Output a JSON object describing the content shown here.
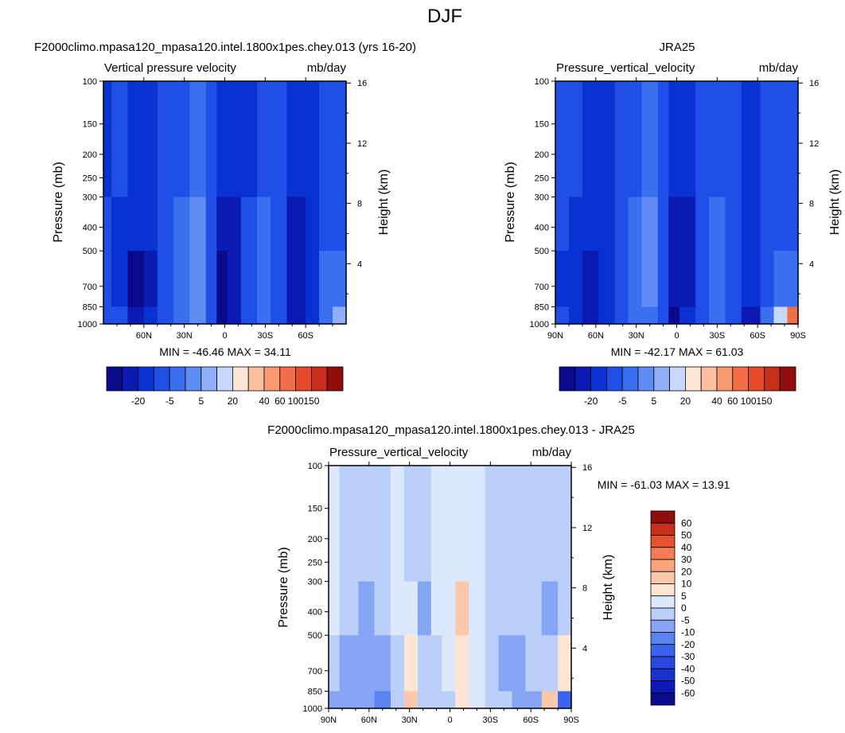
{
  "figure": {
    "title": "DJF"
  },
  "colors": {
    "abs_palette": [
      "#0a0a8c",
      "#0a1ab3",
      "#0a32d2",
      "#1f4fe6",
      "#3a6ff0",
      "#5f8cf2",
      "#8fb0f6",
      "#c6d8fb",
      "#fde5d4",
      "#fcc0a0",
      "#f99a74",
      "#f36d48",
      "#e6482a",
      "#c62d1a",
      "#8f0d0d"
    ],
    "diff_palette": [
      "#0a0a8c",
      "#0a1ab3",
      "#1a32cc",
      "#2848e0",
      "#3a64ee",
      "#5a84f0",
      "#86a6f5",
      "#bad0f9",
      "#dce9fd",
      "#fde5d4",
      "#fcc8ac",
      "#f9a67f",
      "#f37d57",
      "#e6512f",
      "#c8301b",
      "#8f0d0d"
    ]
  },
  "chart_data": [
    {
      "type": "heatmap",
      "title": "F2000climo.mpasa120_mpasa120.intel.1800x1pes.chey.013 (yrs 16-20)",
      "left_string": "Vertical pressure velocity",
      "right_string": "mb/day",
      "ylabel": "Pressure (mb)",
      "y2label": "Height (km)",
      "x_ticks": [
        "60N",
        "30N",
        "0",
        "30S",
        "60S"
      ],
      "x_range": [
        90,
        -90
      ],
      "y_ticks": [
        "100",
        "150",
        "200",
        "250",
        "300",
        "400",
        "500",
        "700",
        "850",
        "1000"
      ],
      "y_range": [
        100,
        1000
      ],
      "height_ticks": [
        "16",
        "12",
        "8",
        "4"
      ],
      "stats": "MIN = -46.46  MAX =  34.11",
      "min": -46.46,
      "max": 34.11,
      "colorbar": {
        "orientation": "horizontal",
        "labels": [
          "-20",
          "-5",
          "5",
          "20",
          "40",
          "60",
          "100",
          "150"
        ]
      },
      "bands": [
        {
          "lat": [
            90,
            84
          ],
          "levels": [
            -22,
            -20,
            -18,
            -15
          ]
        },
        {
          "lat": [
            84,
            72
          ],
          "levels": [
            -20,
            -22,
            -28,
            -15
          ]
        },
        {
          "lat": [
            72,
            60
          ],
          "levels": [
            -22,
            -30,
            -42,
            -40
          ]
        },
        {
          "lat": [
            60,
            50
          ],
          "levels": [
            -22,
            -30,
            -38,
            -30
          ]
        },
        {
          "lat": [
            50,
            38
          ],
          "levels": [
            -15,
            -18,
            -15,
            -12
          ]
        },
        {
          "lat": [
            38,
            26
          ],
          "levels": [
            -12,
            -8,
            -6,
            -8
          ]
        },
        {
          "lat": [
            26,
            14
          ],
          "levels": [
            -10,
            -5,
            -3,
            -5
          ]
        },
        {
          "lat": [
            14,
            6
          ],
          "levels": [
            -18,
            -15,
            -12,
            -14
          ]
        },
        {
          "lat": [
            6,
            -2
          ],
          "levels": [
            -28,
            -40,
            -45,
            -44
          ]
        },
        {
          "lat": [
            -2,
            -12
          ],
          "levels": [
            -28,
            -35,
            -38,
            -32
          ]
        },
        {
          "lat": [
            -12,
            -24
          ],
          "levels": [
            -22,
            -20,
            -20,
            -20
          ]
        },
        {
          "lat": [
            -24,
            -34
          ],
          "levels": [
            -15,
            -10,
            -8,
            -10
          ]
        },
        {
          "lat": [
            -34,
            -46
          ],
          "levels": [
            -16,
            -15,
            -14,
            -15
          ]
        },
        {
          "lat": [
            -46,
            -60
          ],
          "levels": [
            -25,
            -32,
            -40,
            -38
          ]
        },
        {
          "lat": [
            -60,
            -70
          ],
          "levels": [
            -22,
            -25,
            -30,
            -28
          ]
        },
        {
          "lat": [
            -70,
            -80
          ],
          "levels": [
            -18,
            -15,
            -10,
            -6
          ]
        },
        {
          "lat": [
            -80,
            -90
          ],
          "levels": [
            -15,
            -12,
            -8,
            0
          ]
        }
      ]
    },
    {
      "type": "heatmap",
      "title": "JRA25",
      "left_string": "Pressure_vertical_velocity",
      "right_string": "mb/day",
      "ylabel": "Pressure (mb)",
      "y2label": "Height (km)",
      "x_ticks": [
        "90N",
        "60N",
        "30N",
        "0",
        "30S",
        "60S",
        "90S"
      ],
      "x_range": [
        90,
        -90
      ],
      "y_ticks": [
        "100",
        "150",
        "200",
        "250",
        "300",
        "400",
        "500",
        "700",
        "850",
        "1000"
      ],
      "y_range": [
        100,
        1000
      ],
      "height_ticks": [
        "16",
        "12",
        "8",
        "4"
      ],
      "stats": "MIN = -42.17  MAX =  61.03",
      "min": -42.17,
      "max": 61.03,
      "colorbar": {
        "orientation": "horizontal",
        "labels": [
          "-20",
          "-5",
          "5",
          "20",
          "40",
          "60",
          "100",
          "150"
        ]
      },
      "bands": [
        {
          "lat": [
            90,
            80
          ],
          "levels": [
            -18,
            -20,
            -22,
            -18
          ]
        },
        {
          "lat": [
            80,
            70
          ],
          "levels": [
            -20,
            -22,
            -26,
            -22
          ]
        },
        {
          "lat": [
            70,
            58
          ],
          "levels": [
            -22,
            -28,
            -36,
            -40
          ]
        },
        {
          "lat": [
            58,
            46
          ],
          "levels": [
            -22,
            -28,
            -30,
            -28
          ]
        },
        {
          "lat": [
            46,
            36
          ],
          "levels": [
            -18,
            -20,
            -18,
            -15
          ]
        },
        {
          "lat": [
            36,
            26
          ],
          "levels": [
            -14,
            -10,
            -8,
            -10
          ]
        },
        {
          "lat": [
            26,
            14
          ],
          "levels": [
            -10,
            -4,
            -3,
            -6
          ]
        },
        {
          "lat": [
            14,
            6
          ],
          "levels": [
            -16,
            -12,
            -12,
            -16
          ]
        },
        {
          "lat": [
            6,
            -2
          ],
          "levels": [
            -26,
            -38,
            -40,
            -42
          ]
        },
        {
          "lat": [
            -2,
            -14
          ],
          "levels": [
            -26,
            -36,
            -40,
            -30
          ]
        },
        {
          "lat": [
            -14,
            -24
          ],
          "levels": [
            -20,
            -18,
            -20,
            -18
          ]
        },
        {
          "lat": [
            -24,
            -36
          ],
          "levels": [
            -14,
            -10,
            -8,
            -6
          ]
        },
        {
          "lat": [
            -36,
            -48
          ],
          "levels": [
            -16,
            -16,
            -16,
            -18
          ]
        },
        {
          "lat": [
            -48,
            -62
          ],
          "levels": [
            -22,
            -26,
            -30,
            -34
          ]
        },
        {
          "lat": [
            -62,
            -72
          ],
          "levels": [
            -18,
            -20,
            -18,
            -8
          ]
        },
        {
          "lat": [
            -72,
            -82
          ],
          "levels": [
            -14,
            -12,
            -8,
            6
          ]
        },
        {
          "lat": [
            -82,
            -90
          ],
          "levels": [
            -14,
            -14,
            -10,
            40
          ]
        }
      ]
    },
    {
      "type": "heatmap",
      "title": "F2000climo.mpasa120_mpasa120.intel.1800x1pes.chey.013 - JRA25",
      "left_string": "Pressure_vertical_velocity",
      "right_string": "mb/day",
      "ylabel": "Pressure (mb)",
      "y2label": "Height (km)",
      "x_ticks": [
        "90N",
        "60N",
        "30N",
        "0",
        "30S",
        "60S",
        "90S"
      ],
      "x_range": [
        90,
        -90
      ],
      "y_ticks": [
        "100",
        "150",
        "200",
        "250",
        "300",
        "400",
        "500",
        "700",
        "850",
        "1000"
      ],
      "y_range": [
        100,
        1000
      ],
      "height_ticks": [
        "16",
        "12",
        "8",
        "4"
      ],
      "stats": "MIN = -61.03  MAX =  13.91",
      "min": -61.03,
      "max": 13.91,
      "colorbar": {
        "orientation": "vertical",
        "labels": [
          "60",
          "50",
          "40",
          "30",
          "20",
          "10",
          "5",
          "0",
          "-5",
          "-10",
          "-20",
          "-30",
          "-40",
          "-50",
          "-60"
        ]
      },
      "bands": [
        {
          "lat": [
            90,
            82
          ],
          "levels": [
            2,
            1,
            -3,
            -8
          ]
        },
        {
          "lat": [
            82,
            68
          ],
          "levels": [
            -2,
            -4,
            -6,
            -8
          ]
        },
        {
          "lat": [
            68,
            56
          ],
          "levels": [
            -3,
            -6,
            -9,
            -6
          ]
        },
        {
          "lat": [
            56,
            44
          ],
          "levels": [
            -2,
            -3,
            -10,
            -14
          ]
        },
        {
          "lat": [
            44,
            34
          ],
          "levels": [
            1,
            2,
            -2,
            -4
          ]
        },
        {
          "lat": [
            34,
            24
          ],
          "levels": [
            -1,
            4,
            8,
            14
          ]
        },
        {
          "lat": [
            24,
            14
          ],
          "levels": [
            -4,
            -8,
            -3,
            -2
          ]
        },
        {
          "lat": [
            14,
            6
          ],
          "levels": [
            2,
            2,
            -2,
            -3
          ]
        },
        {
          "lat": [
            6,
            -4
          ],
          "levels": [
            1,
            2,
            1,
            -2
          ]
        },
        {
          "lat": [
            -4,
            -14
          ],
          "levels": [
            2,
            10,
            9,
            6
          ]
        },
        {
          "lat": [
            -14,
            -26
          ],
          "levels": [
            1,
            4,
            3,
            2
          ]
        },
        {
          "lat": [
            -26,
            -36
          ],
          "levels": [
            -1,
            -3,
            -4,
            -3
          ]
        },
        {
          "lat": [
            -36,
            -46
          ],
          "levels": [
            -2,
            -4,
            -6,
            -4
          ]
        },
        {
          "lat": [
            -46,
            -56
          ],
          "levels": [
            -3,
            -4,
            -6,
            -8
          ]
        },
        {
          "lat": [
            -56,
            -68
          ],
          "levels": [
            -1,
            -2,
            -2,
            -6
          ]
        },
        {
          "lat": [
            -68,
            -80
          ],
          "levels": [
            -4,
            -6,
            -3,
            10
          ]
        },
        {
          "lat": [
            -80,
            -90
          ],
          "levels": [
            -2,
            -2,
            6,
            -30
          ]
        }
      ]
    }
  ]
}
